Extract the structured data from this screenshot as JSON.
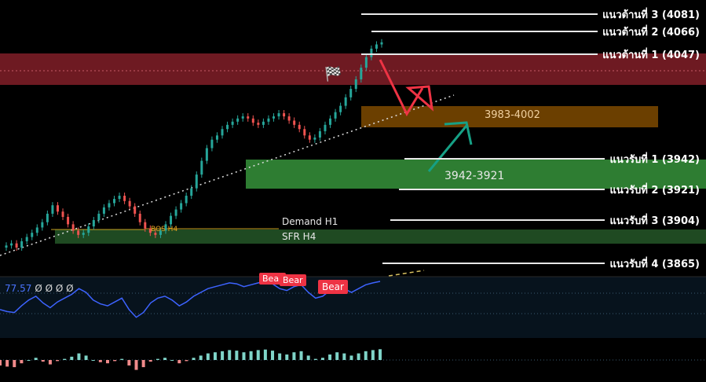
{
  "levels": {
    "resistance": [
      {
        "label": "แนวต้านที่ 3 (4081)"
      },
      {
        "label": "แนวต้านที่ 2 (4066)"
      },
      {
        "label": "แนวต้านที่ 1 (4047)"
      }
    ],
    "support": [
      {
        "label": "แนวรับที่ 1 (3942)"
      },
      {
        "label": "แนวรับที่ 2 (3921)"
      },
      {
        "label": "แนวรับที่ 3 (3904)"
      },
      {
        "label": "แนวรับที่ 4 (3865)"
      }
    ]
  },
  "zones": {
    "orange": "3983-4002",
    "green": "3942-3921",
    "demand": "Demand H1",
    "sfr": "SFR H4",
    "bos": "BOS H4"
  },
  "indicator": {
    "value": "77.57",
    "extras": "Ø Ø Ø Ø",
    "tags": [
      "Bear",
      "Bear",
      "Bear"
    ]
  },
  "colors": {
    "resistance_zone": "#6e1a22",
    "supply_zone": "#6b3f00",
    "demand_zone": "#2e7d32",
    "sfr_zone": "#1f4a22",
    "up_candle": "#26a69a",
    "down_candle": "#ef5350",
    "rsi_line": "#3d63ff",
    "arrow_red": "#ee3344",
    "arrow_green": "#16a085"
  },
  "chart_data": {
    "type": "candlestick",
    "title": "",
    "xlabel": "",
    "ylabel": "",
    "ylim": [
      3830,
      4090
    ],
    "resistance_levels": [
      4081,
      4066,
      4047
    ],
    "support_levels": [
      3942,
      3921,
      3904,
      3865
    ],
    "zones": [
      {
        "name": "3983-4002",
        "low": 3983,
        "high": 4002
      },
      {
        "name": "3942-3921",
        "low": 3921,
        "high": 3942
      }
    ],
    "close": [
      3858,
      3860,
      3856,
      3862,
      3866,
      3870,
      3875,
      3880,
      3888,
      3896,
      3890,
      3885,
      3878,
      3872,
      3868,
      3870,
      3876,
      3882,
      3888,
      3894,
      3898,
      3902,
      3905,
      3900,
      3895,
      3888,
      3880,
      3874,
      3870,
      3868,
      3872,
      3878,
      3886,
      3892,
      3898,
      3905,
      3912,
      3925,
      3938,
      3950,
      3958,
      3962,
      3968,
      3972,
      3975,
      3978,
      3980,
      3978,
      3974,
      3972,
      3975,
      3978,
      3980,
      3983,
      3980,
      3976,
      3972,
      3968,
      3962,
      3958,
      3960,
      3966,
      3972,
      3978,
      3984,
      3990,
      3998,
      4006,
      4015,
      4026,
      4036,
      4044,
      4048,
      4050
    ],
    "rsi": [
      48,
      46,
      45,
      52,
      58,
      62,
      55,
      50,
      56,
      60,
      64,
      70,
      66,
      58,
      54,
      52,
      56,
      60,
      48,
      40,
      45,
      55,
      60,
      62,
      58,
      52,
      56,
      62,
      66,
      70,
      72,
      74,
      76,
      75,
      72,
      74,
      76,
      77,
      75,
      70,
      68,
      72,
      74,
      66,
      60,
      62,
      68,
      72,
      70,
      66,
      70,
      74,
      76,
      77.57
    ]
  }
}
